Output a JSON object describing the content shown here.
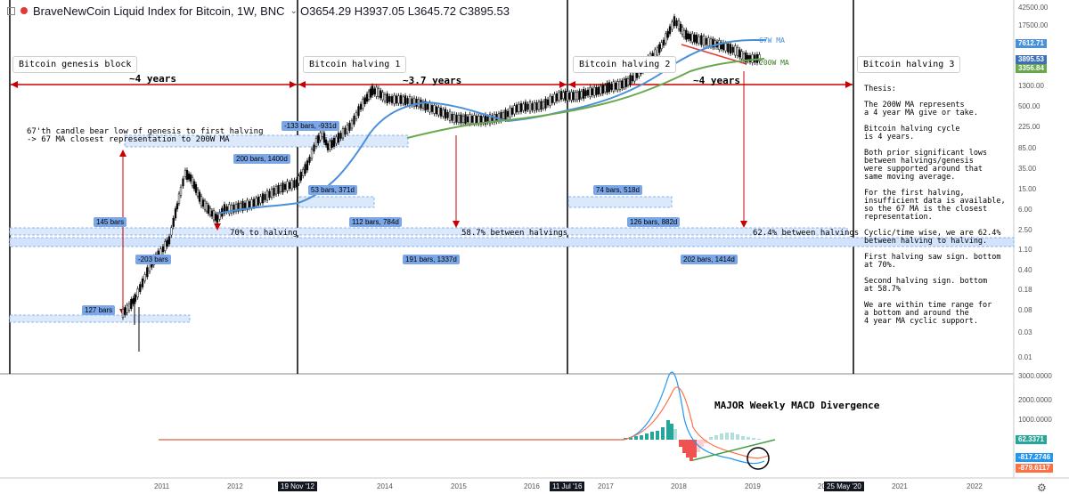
{
  "header": {
    "title": "BraveNewCoin Liquid Index for Bitcoin, 1W, BNC",
    "ohlc": "O3654.29 H3937.05 L3645.72 C3895.53"
  },
  "chart_data": {
    "type": "line",
    "price_axis": {
      "scale": "log",
      "tick_labels": [
        "42500.00",
        "17500.00",
        "7612.71",
        "3895.53",
        "3356.84",
        "1300.00",
        "500.00",
        "225.00",
        "85.00",
        "35.00",
        "15.00",
        "6.00",
        "2.50",
        "1.10",
        "0.40",
        "0.18",
        "0.08",
        "0.03",
        "0.01"
      ],
      "highlight_labels": [
        {
          "text": "7612.71",
          "color": "#4a90d9"
        },
        {
          "text": "3895.53",
          "color": "#3d6fb6"
        },
        {
          "text": "3356.84",
          "color": "#6aa84f"
        }
      ]
    },
    "macd_axis": {
      "tick_labels": [
        "3000.0000",
        "2000.0000",
        "1000.0000"
      ],
      "highlight_labels": [
        {
          "text": "62.3371",
          "color": "#26a69a"
        },
        {
          "text": "-817.2746",
          "color": "#2196f3"
        },
        {
          "text": "-879.6117",
          "color": "#ff7043"
        }
      ]
    },
    "time_axis": {
      "labels": [
        "2011",
        "2012",
        "19 Nov '12",
        "2014",
        "2015",
        "2016",
        "11 Jul '16",
        "2017",
        "2018",
        "2019",
        "2020",
        "25 May '20",
        "2021",
        "2022"
      ],
      "dark_labels": [
        "19 Nov '12",
        "11 Jul '16",
        "25 May '20"
      ]
    },
    "events": [
      "Bitcoin genesis block",
      "Bitcoin halving 1",
      "Bitcoin halving 2",
      "Bitcoin halving 3"
    ],
    "spans": [
      "~4 years",
      "~3.7 years",
      "~4 years"
    ],
    "measure_boxes": [
      "-133 bars, -931d",
      "200 bars, 1400d",
      "53 bars, 371d",
      "74 bars, 518d",
      "145 bars",
      "112 bars, 784d",
      "126 bars, 882d",
      "-203 bars",
      "191 bars, 1337d",
      "202 bars, 1414d",
      "127 bars"
    ],
    "series": [
      {
        "name": "67W MA",
        "color": "#4a90d9"
      },
      {
        "name": "200W MA",
        "color": "#6aa84f"
      }
    ],
    "annotations": {
      "note_67": "67'th candle bear low of genesis to first halving\n-> 67 MA closest representation to 200W MA",
      "pct1": "70% to halving",
      "pct2": "58.7% between halvings",
      "pct3": "62.4% between halvings",
      "macd_title": "MAJOR Weekly MACD Divergence"
    },
    "thesis": "Thesis:\n\nThe 200W MA represents\na 4 year MA give or take.\n\nBitcoin halving cycle\nis 4 years.\n\nBoth prior significant lows\nbetween halvings/genesis\nwere supported around that\nsame moving average.\n\nFor the first halving,\ninsufficient data is available,\nso the 67 MA is the closest\nrepresentation.\n\nCyclic/time wise, we are 62.4%\nbetween halving to halving.\n\nFirst halving saw sign. bottom\nat 70%.\n\nSecond halving sign. bottom\nat 58.7%\n\nWe are within time range for\na bottom and around the\n4 year MA cyclic support."
  }
}
